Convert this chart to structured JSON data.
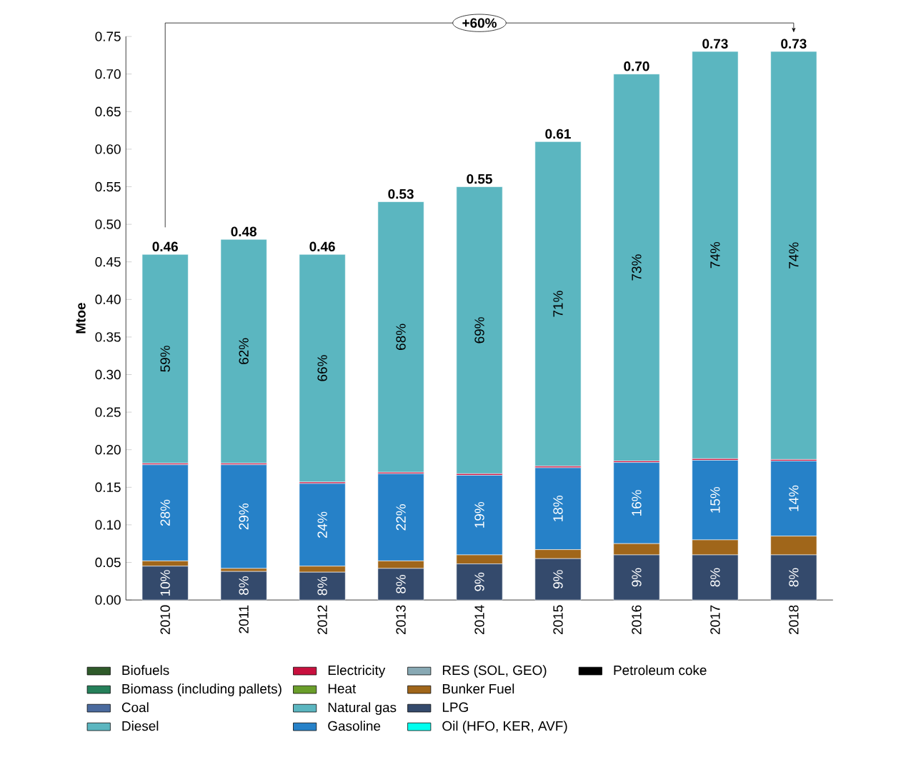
{
  "chart_data": {
    "type": "bar",
    "stacked": true,
    "ylabel": "Mtoe",
    "categories": [
      "2010",
      "2011",
      "2012",
      "2013",
      "2014",
      "2015",
      "2016",
      "2017",
      "2018"
    ],
    "series": [
      {
        "name": "Petroleum coke",
        "color": "#000000",
        "values": [
          null,
          null,
          null,
          null,
          null,
          null,
          null,
          null,
          null
        ]
      },
      {
        "name": "Oil (HFO, KER, AVF)",
        "color": "#00ffee",
        "values": [
          null,
          null,
          null,
          null,
          null,
          null,
          null,
          null,
          null
        ]
      },
      {
        "name": "LPG",
        "color": "#344a6c",
        "values": [
          0.045,
          0.038,
          0.037,
          0.042,
          0.048,
          0.055,
          0.06,
          0.06,
          0.06
        ]
      },
      {
        "name": "Bunker Fuel",
        "color": "#a0661a",
        "values": [
          0.007,
          0.004,
          0.008,
          0.01,
          0.012,
          0.012,
          0.015,
          0.02,
          0.025
        ]
      },
      {
        "name": "RES (SOL, GEO)",
        "color": "#88a9b4",
        "values": [
          null,
          null,
          null,
          null,
          null,
          null,
          null,
          null,
          null
        ]
      },
      {
        "name": "Gasoline",
        "color": "#2681c8",
        "values": [
          0.128,
          0.138,
          0.11,
          0.116,
          0.106,
          0.109,
          0.108,
          0.106,
          0.1
        ]
      },
      {
        "name": "Natural gas",
        "color": "#5bb6c0",
        "values": [
          null,
          null,
          null,
          null,
          null,
          null,
          null,
          null,
          null
        ]
      },
      {
        "name": "Heat",
        "color": "#6a9e2a",
        "values": [
          null,
          null,
          null,
          null,
          null,
          null,
          null,
          null,
          null
        ]
      },
      {
        "name": "Electricity",
        "color": "#c8103e",
        "values": [
          0.002,
          0.002,
          0.002,
          0.002,
          0.002,
          0.002,
          0.002,
          0.002,
          0.002
        ]
      },
      {
        "name": "Diesel",
        "color": "#5bb6c0",
        "values": [
          0.278,
          0.298,
          0.303,
          0.36,
          0.382,
          0.432,
          0.515,
          0.542,
          0.543
        ]
      },
      {
        "name": "Coal",
        "color": "#4a6a9e",
        "values": [
          null,
          null,
          null,
          null,
          null,
          null,
          null,
          null,
          null
        ]
      },
      {
        "name": "Biomass (including pallets)",
        "color": "#25805a",
        "values": [
          null,
          null,
          null,
          null,
          null,
          null,
          null,
          null,
          null
        ]
      },
      {
        "name": "Biofuels",
        "color": "#2f5a2a",
        "values": [
          null,
          null,
          null,
          null,
          null,
          null,
          null,
          null,
          null
        ]
      }
    ],
    "totals": [
      "0.46",
      "0.48",
      "0.46",
      "0.53",
      "0.55",
      "0.61",
      "0.70",
      "0.73",
      "0.73"
    ],
    "annotations": [
      "+60%",
      "10%",
      "8%",
      "8%",
      "8%",
      "9%",
      "9%",
      "9%",
      "8%",
      "8%",
      "28%",
      "29%",
      "24%",
      "22%",
      "19%",
      "18%",
      "16%",
      "15%",
      "14%",
      "59%",
      "62%",
      "66%",
      "68%",
      "69%",
      "71%",
      "73%",
      "74%",
      "74%"
    ],
    "ylim": [
      0,
      0.75
    ],
    "yticks": [
      {
        "value": 0,
        "label": "0.00"
      },
      {
        "value": 0.05,
        "label": "0.05"
      },
      {
        "value": 0.1,
        "label": "0.10"
      },
      {
        "value": 0.15,
        "label": "0.15"
      },
      {
        "value": 0.2,
        "label": "0.20"
      },
      {
        "value": 0.25,
        "label": "0.25"
      },
      {
        "value": 0.3,
        "label": "0.30"
      },
      {
        "value": 0.35,
        "label": "0.35"
      },
      {
        "value": 0.4,
        "label": "0.40"
      },
      {
        "value": 0.45,
        "label": "0.45"
      },
      {
        "value": 0.5,
        "label": "0.50"
      },
      {
        "value": 0.55,
        "label": "0.55"
      },
      {
        "value": 0.6,
        "label": "0.60"
      },
      {
        "value": 0.65,
        "label": "0.65"
      },
      {
        "value": 0.7,
        "label": "0.70"
      },
      {
        "value": 0.75,
        "label": "0.75"
      }
    ],
    "grid": false,
    "legend": "bottom"
  }
}
